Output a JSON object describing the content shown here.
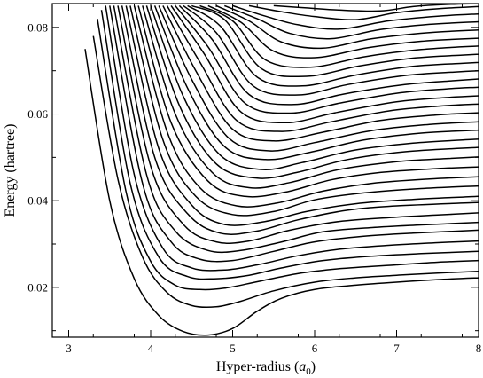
{
  "chart_data": {
    "type": "line",
    "title": "",
    "xlabel_main": "Hyper-radius (",
    "xlabel_sym": "a",
    "xlabel_sub": "0",
    "xlabel_close": ")",
    "ylabel": "Energy (hartree)",
    "xlim": [
      2.8,
      8.0
    ],
    "ylim": [
      0.0085,
      0.0855
    ],
    "x_ticks": [
      3,
      4,
      5,
      6,
      7,
      8
    ],
    "x_tick_labels": [
      "3",
      "4",
      "5",
      "6",
      "7",
      "8"
    ],
    "y_ticks": [
      0.02,
      0.04,
      0.06,
      0.08
    ],
    "y_tick_labels": [
      "0.02",
      "0.04",
      "0.06",
      "0.08"
    ],
    "grid": false,
    "legend": "none",
    "series": [
      {
        "x": [
          3.2,
          3.5,
          3.8,
          4.1,
          4.4,
          4.7,
          5.0,
          5.3,
          5.6,
          6.0,
          6.5,
          7.0,
          7.5,
          8.0
        ],
        "y": [
          0.075,
          0.04,
          0.022,
          0.0135,
          0.0098,
          0.009,
          0.0105,
          0.0145,
          0.0175,
          0.0195,
          0.0205,
          0.0212,
          0.0218,
          0.0222
        ]
      },
      {
        "x": [
          3.3,
          3.6,
          3.9,
          4.2,
          4.5,
          4.8,
          5.1,
          5.5,
          6.0,
          6.5,
          7.0,
          7.5,
          8.0
        ],
        "y": [
          0.078,
          0.045,
          0.027,
          0.0188,
          0.0158,
          0.0155,
          0.0168,
          0.0192,
          0.0212,
          0.0222,
          0.0228,
          0.0233,
          0.0237
        ]
      },
      {
        "x": [
          3.35,
          3.7,
          4.0,
          4.3,
          4.6,
          4.9,
          5.3,
          5.8,
          6.3,
          7.0,
          7.5,
          8.0
        ],
        "y": [
          0.082,
          0.042,
          0.026,
          0.0205,
          0.0195,
          0.0198,
          0.0213,
          0.0232,
          0.0243,
          0.0252,
          0.0258,
          0.0262
        ]
      },
      {
        "x": [
          3.4,
          3.75,
          4.1,
          4.45,
          4.8,
          5.2,
          5.6,
          6.1,
          6.7,
          7.3,
          8.0
        ],
        "y": [
          0.084,
          0.044,
          0.027,
          0.0225,
          0.022,
          0.0228,
          0.0245,
          0.0262,
          0.0272,
          0.0278,
          0.0283
        ]
      },
      {
        "x": [
          3.45,
          3.8,
          4.15,
          4.5,
          4.9,
          5.3,
          5.8,
          6.3,
          6.9,
          7.5,
          8.0
        ],
        "y": [
          0.085,
          0.046,
          0.029,
          0.0245,
          0.024,
          0.0252,
          0.0273,
          0.0288,
          0.0297,
          0.0303,
          0.0307
        ]
      },
      {
        "x": [
          3.5,
          3.9,
          4.25,
          4.6,
          5.0,
          5.5,
          6.0,
          6.6,
          7.2,
          8.0
        ],
        "y": [
          0.085,
          0.044,
          0.0305,
          0.0265,
          0.0262,
          0.0283,
          0.0305,
          0.0318,
          0.0325,
          0.0332
        ]
      },
      {
        "x": [
          3.55,
          3.95,
          4.3,
          4.7,
          5.1,
          5.6,
          6.1,
          6.7,
          7.3,
          8.0
        ],
        "y": [
          0.085,
          0.046,
          0.033,
          0.0285,
          0.0285,
          0.0305,
          0.0328,
          0.0338,
          0.0344,
          0.035
        ]
      },
      {
        "x": [
          3.6,
          4.0,
          4.4,
          4.8,
          5.2,
          5.7,
          6.3,
          7.0,
          7.5,
          8.0
        ],
        "y": [
          0.085,
          0.048,
          0.0345,
          0.0305,
          0.0307,
          0.0332,
          0.0352,
          0.0362,
          0.0367,
          0.0372
        ]
      },
      {
        "x": [
          3.65,
          4.05,
          4.45,
          4.85,
          5.3,
          5.8,
          6.4,
          7.0,
          8.0
        ],
        "y": [
          0.085,
          0.05,
          0.037,
          0.0325,
          0.033,
          0.0356,
          0.0378,
          0.0388,
          0.0396
        ]
      },
      {
        "x": [
          3.7,
          4.1,
          4.5,
          4.9,
          5.4,
          5.9,
          6.5,
          7.2,
          8.0
        ],
        "y": [
          0.085,
          0.052,
          0.039,
          0.0345,
          0.0352,
          0.0375,
          0.0393,
          0.0403,
          0.041
        ]
      },
      {
        "x": [
          3.75,
          4.15,
          4.55,
          5.0,
          5.5,
          6.0,
          6.6,
          7.3,
          8.0
        ],
        "y": [
          0.085,
          0.054,
          0.041,
          0.0368,
          0.0375,
          0.0402,
          0.0418,
          0.0428,
          0.0434
        ]
      },
      {
        "x": [
          3.8,
          4.2,
          4.6,
          5.05,
          5.55,
          6.1,
          6.7,
          7.4,
          8.0
        ],
        "y": [
          0.085,
          0.056,
          0.043,
          0.0388,
          0.0395,
          0.0422,
          0.044,
          0.045,
          0.0455
        ]
      },
      {
        "x": [
          3.85,
          4.25,
          4.7,
          5.15,
          5.65,
          6.2,
          6.8,
          7.5,
          8.0
        ],
        "y": [
          0.085,
          0.058,
          0.0445,
          0.041,
          0.042,
          0.0448,
          0.0465,
          0.0474,
          0.0478
        ]
      },
      {
        "x": [
          3.9,
          4.3,
          4.75,
          5.2,
          5.7,
          6.3,
          7.0,
          7.6,
          8.0
        ],
        "y": [
          0.085,
          0.06,
          0.0465,
          0.043,
          0.0442,
          0.0472,
          0.049,
          0.0497,
          0.0501
        ]
      },
      {
        "x": [
          3.95,
          4.35,
          4.8,
          5.3,
          5.8,
          6.4,
          7.1,
          8.0
        ],
        "y": [
          0.085,
          0.062,
          0.0485,
          0.0452,
          0.0466,
          0.0495,
          0.0513,
          0.0523
        ]
      },
      {
        "x": [
          4.0,
          4.4,
          4.85,
          5.35,
          5.85,
          6.5,
          7.2,
          8.0
        ],
        "y": [
          0.085,
          0.064,
          0.0505,
          0.0472,
          0.0488,
          0.0517,
          0.0533,
          0.0542
        ]
      },
      {
        "x": [
          4.05,
          4.45,
          4.9,
          5.4,
          5.95,
          6.6,
          7.3,
          8.0
        ],
        "y": [
          0.085,
          0.066,
          0.0525,
          0.0495,
          0.0512,
          0.054,
          0.0556,
          0.0563
        ]
      },
      {
        "x": [
          4.1,
          4.5,
          4.95,
          5.45,
          6.0,
          6.7,
          7.4,
          8.0
        ],
        "y": [
          0.085,
          0.068,
          0.0545,
          0.0515,
          0.0534,
          0.0562,
          0.0576,
          0.0582
        ]
      },
      {
        "x": [
          4.15,
          4.55,
          5.0,
          5.5,
          6.1,
          6.8,
          7.5,
          8.0
        ],
        "y": [
          0.085,
          0.07,
          0.0565,
          0.0538,
          0.0558,
          0.0585,
          0.0598,
          0.0603
        ]
      },
      {
        "x": [
          4.2,
          4.6,
          5.05,
          5.6,
          6.2,
          6.9,
          7.5,
          8.0
        ],
        "y": [
          0.085,
          0.072,
          0.0585,
          0.056,
          0.0582,
          0.0607,
          0.0618,
          0.0623
        ]
      },
      {
        "x": [
          4.25,
          4.65,
          5.1,
          5.65,
          6.25,
          7.0,
          7.6,
          8.0
        ],
        "y": [
          0.085,
          0.074,
          0.0605,
          0.058,
          0.0603,
          0.0628,
          0.0638,
          0.0642
        ]
      },
      {
        "x": [
          4.3,
          4.7,
          5.15,
          5.7,
          6.3,
          7.0,
          7.6,
          8.0
        ],
        "y": [
          0.085,
          0.0755,
          0.0625,
          0.0602,
          0.0625,
          0.0648,
          0.0658,
          0.0662
        ]
      },
      {
        "x": [
          4.35,
          4.75,
          5.2,
          5.75,
          6.35,
          7.1,
          7.7,
          8.0
        ],
        "y": [
          0.085,
          0.0772,
          0.0645,
          0.0622,
          0.0646,
          0.0668,
          0.0677,
          0.0681
        ]
      },
      {
        "x": [
          4.4,
          4.8,
          5.25,
          5.8,
          6.4,
          7.1,
          7.7,
          8.0
        ],
        "y": [
          0.085,
          0.0788,
          0.0665,
          0.0644,
          0.0668,
          0.0689,
          0.0697,
          0.07
        ]
      },
      {
        "x": [
          4.45,
          4.85,
          5.3,
          5.85,
          6.5,
          7.2,
          7.8,
          8.0
        ],
        "y": [
          0.085,
          0.0803,
          0.0685,
          0.0665,
          0.069,
          0.071,
          0.0717,
          0.0719
        ]
      },
      {
        "x": [
          4.5,
          4.9,
          5.35,
          5.9,
          6.55,
          7.2,
          7.8,
          8.0
        ],
        "y": [
          0.085,
          0.0818,
          0.0705,
          0.0687,
          0.0711,
          0.0729,
          0.0736,
          0.0738
        ]
      },
      {
        "x": [
          4.6,
          5.0,
          5.4,
          5.95,
          6.6,
          7.3,
          8.0
        ],
        "y": [
          0.085,
          0.0815,
          0.0725,
          0.0708,
          0.0732,
          0.0749,
          0.0757
        ]
      },
      {
        "x": [
          4.7,
          5.1,
          5.5,
          6.0,
          6.65,
          7.3,
          8.0
        ],
        "y": [
          0.085,
          0.0812,
          0.0745,
          0.073,
          0.0753,
          0.0768,
          0.0775
        ]
      },
      {
        "x": [
          4.8,
          5.2,
          5.6,
          6.1,
          6.7,
          7.4,
          8.0
        ],
        "y": [
          0.085,
          0.0815,
          0.0766,
          0.0752,
          0.0774,
          0.0788,
          0.0794
        ]
      },
      {
        "x": [
          4.9,
          5.3,
          5.7,
          6.2,
          6.8,
          7.4,
          8.0
        ],
        "y": [
          0.085,
          0.082,
          0.0786,
          0.0774,
          0.0795,
          0.0807,
          0.0813
        ]
      },
      {
        "x": [
          5.0,
          5.4,
          5.8,
          6.3,
          6.9,
          7.5,
          8.0
        ],
        "y": [
          0.085,
          0.0826,
          0.0806,
          0.0796,
          0.0815,
          0.0826,
          0.0831
        ]
      },
      {
        "x": [
          5.2,
          5.6,
          6.0,
          6.5,
          7.0,
          7.5,
          8.0
        ],
        "y": [
          0.085,
          0.0836,
          0.0825,
          0.0818,
          0.0834,
          0.0843,
          0.0848
        ]
      },
      {
        "x": [
          5.5,
          5.9,
          6.3,
          6.8,
          7.2,
          7.6,
          8.0
        ],
        "y": [
          0.085,
          0.0845,
          0.084,
          0.0838,
          0.0848,
          0.0853,
          0.0855
        ]
      }
    ]
  }
}
